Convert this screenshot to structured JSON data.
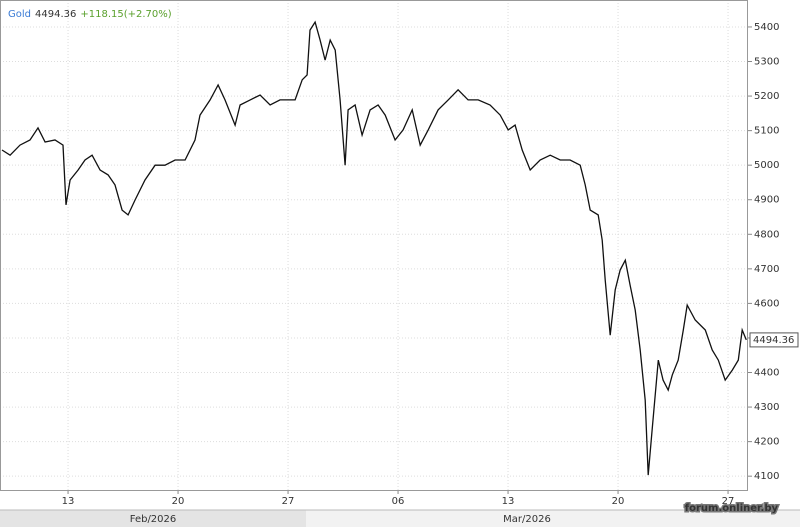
{
  "chart_data": {
    "type": "line",
    "title": "Gold",
    "price": 4494.36,
    "change_label": "+118.15(+2.70%)",
    "watermark": "forum.onliner.by",
    "x": [
      8.8,
      9.31,
      9.94,
      10.58,
      11.09,
      11.54,
      12.17,
      12.68,
      12.87,
      13.13,
      13.64,
      14.08,
      14.53,
      15.04,
      15.55,
      15.99,
      16.44,
      16.82,
      17.26,
      17.9,
      18.54,
      19.17,
      19.81,
      20.45,
      21.08,
      21.4,
      22.04,
      22.55,
      22.99,
      23.63,
      23.95,
      24.59,
      25.22,
      25.86,
      26.49,
      27.45,
      27.9,
      28.21,
      28.4,
      28.72,
      29.04,
      29.36,
      29.68,
      30.0,
      30.31,
      30.63,
      30.82,
      31.27,
      31.71,
      32.22,
      32.73,
      33.18,
      33.81,
      34.32,
      34.9,
      35.41,
      35.92,
      36.55,
      37.19,
      37.82,
      38.46,
      39.1,
      39.86,
      40.5,
      41.01,
      41.45,
      41.9,
      42.41,
      43.04,
      43.68,
      44.32,
      44.95,
      45.59,
      45.91,
      46.23,
      46.74,
      46.99,
      47.18,
      47.5,
      47.82,
      48.14,
      48.46,
      48.77,
      49.09,
      49.41,
      49.73,
      49.92,
      50.17,
      50.56,
      50.87,
      51.19,
      51.45,
      51.83,
      52.15,
      52.4,
      52.91,
      53.55,
      53.99,
      54.38,
      54.82,
      55.27,
      55.65,
      55.9,
      56.16
    ],
    "series": [
      {
        "name": "Gold",
        "color": "#111111",
        "values": [
          5044,
          5029,
          5058,
          5073,
          5108,
          5067,
          5073,
          5058,
          4885,
          4957,
          4986,
          5015,
          5029,
          4986,
          4972,
          4943,
          4870,
          4856,
          4899,
          4957,
          5000,
          5000,
          5015,
          5015,
          5073,
          5145,
          5189,
          5232,
          5189,
          5116,
          5174,
          5189,
          5203,
          5174,
          5189,
          5189,
          5247,
          5261,
          5391,
          5414,
          5362,
          5304,
          5362,
          5333,
          5189,
          5000,
          5160,
          5174,
          5087,
          5160,
          5174,
          5145,
          5073,
          5102,
          5160,
          5058,
          5102,
          5160,
          5189,
          5218,
          5189,
          5189,
          5174,
          5145,
          5102,
          5116,
          5044,
          4986,
          5015,
          5029,
          5015,
          5015,
          5000,
          4943,
          4870,
          4856,
          4783,
          4668,
          4508,
          4639,
          4697,
          4725,
          4653,
          4581,
          4465,
          4320,
          4103,
          4233,
          4436,
          4378,
          4349,
          4393,
          4436,
          4523,
          4595,
          4552,
          4523,
          4465,
          4436,
          4378,
          4407,
          4436,
          4523,
          4494.36
        ]
      }
    ],
    "xlim": [
      8.67,
      56.27
    ],
    "ylim": [
      4060,
      5478
    ],
    "xticks": [
      13,
      20,
      27,
      {
        "value": 34,
        "label": "06"
      },
      {
        "value": 41,
        "label": "13"
      },
      {
        "value": 48,
        "label": "20"
      },
      {
        "value": 55,
        "label": "27"
      }
    ],
    "yticks": [
      4100,
      4200,
      4300,
      4400,
      4500,
      4600,
      4700,
      4800,
      4900,
      5000,
      5100,
      5200,
      5300,
      5400
    ],
    "month_labels": [
      "Feb/2026",
      "Mar/2026"
    ],
    "grid": true
  }
}
